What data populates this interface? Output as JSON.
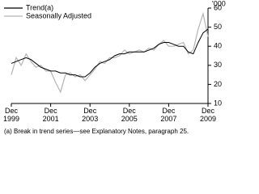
{
  "chart_data": {
    "type": "line",
    "y_unit": "'000",
    "categories": [
      "Dec 1999",
      null,
      null,
      null,
      null,
      null,
      null,
      null,
      "Dec 2001",
      null,
      null,
      null,
      null,
      null,
      null,
      null,
      "Dec 2003",
      null,
      null,
      null,
      null,
      null,
      null,
      null,
      "Dec 2005",
      null,
      null,
      null,
      null,
      null,
      null,
      null,
      "Dec 2007",
      null,
      null,
      null,
      null,
      null,
      null,
      null,
      "Dec 2009"
    ],
    "series": [
      {
        "name": "Trend(a)",
        "color": "#000000",
        "values": [
          31,
          32,
          33,
          34,
          33,
          31,
          29,
          28,
          27,
          27,
          26,
          26,
          25,
          25,
          24,
          24,
          26,
          29,
          31,
          32,
          33,
          35,
          36,
          36,
          37,
          37,
          37,
          37,
          38,
          39,
          41,
          42,
          42,
          41,
          40,
          40,
          37,
          36,
          42,
          47,
          49
        ]
      },
      {
        "name": "Seasonally Adjusted",
        "color": "#b4b4b4",
        "values": [
          25,
          34,
          30,
          36,
          32,
          29,
          30,
          27,
          27,
          21,
          16,
          25,
          26,
          24,
          25,
          22,
          25,
          28,
          32,
          31,
          34,
          34,
          35,
          38,
          36,
          37,
          38,
          37,
          39,
          38,
          41,
          43,
          40,
          40,
          41,
          42,
          36,
          38,
          49,
          57,
          45
        ]
      }
    ],
    "ylim": [
      10,
      60
    ],
    "yticks": [
      10,
      20,
      30,
      40,
      50,
      60
    ],
    "footnote": "(a) Break in trend series—see Explanatory Notes, paragraph 25."
  }
}
